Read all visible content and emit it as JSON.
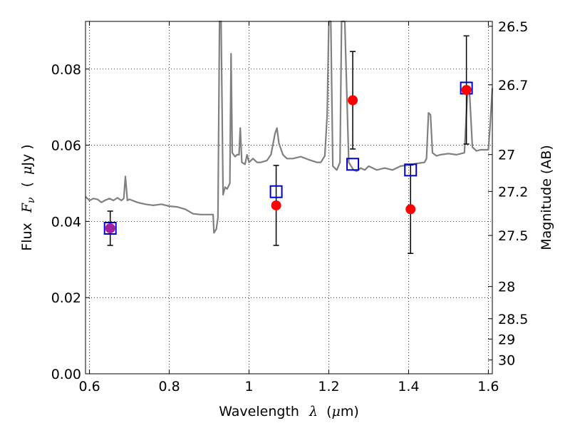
{
  "chart_data": {
    "type": "scatter",
    "xlabel": {
      "prefix": "Wavelength",
      "symbol": "λ",
      "units_open": "(",
      "units_symbol": "μ",
      "units_rest": "m)"
    },
    "ylabel": {
      "prefix": "Flux",
      "symbol": "F",
      "subscript": "ν",
      "units_open": "(",
      "units_symbol": "μ",
      "units_rest": "Jy )"
    },
    "ylabel_right": "Magnitude (AB)",
    "xlim": [
      0.59,
      1.61
    ],
    "ylim": [
      0.0,
      0.0925
    ],
    "grid": true,
    "x_ticks": [
      {
        "value": 0.6,
        "label": "0.6"
      },
      {
        "value": 0.8,
        "label": "0.8"
      },
      {
        "value": 1.0,
        "label": "1"
      },
      {
        "value": 1.2,
        "label": "1.2"
      },
      {
        "value": 1.4,
        "label": "1.4"
      },
      {
        "value": 1.6,
        "label": "1.6"
      }
    ],
    "y_ticks": [
      {
        "value": 0.0,
        "label": "0.00"
      },
      {
        "value": 0.02,
        "label": "0.02"
      },
      {
        "value": 0.04,
        "label": "0.04"
      },
      {
        "value": 0.06,
        "label": "0.06"
      },
      {
        "value": 0.08,
        "label": "0.08"
      }
    ],
    "right_ticks": [
      {
        "value": 26.5,
        "label": "26.5"
      },
      {
        "value": 26.7,
        "label": "26.7"
      },
      {
        "value": 27.0,
        "label": "27"
      },
      {
        "value": 27.2,
        "label": "27.2"
      },
      {
        "value": 27.5,
        "label": "27.5"
      },
      {
        "value": 28.0,
        "label": "28"
      },
      {
        "value": 28.5,
        "label": "28.5"
      },
      {
        "value": 29.0,
        "label": "29"
      },
      {
        "value": 30.0,
        "label": "30"
      }
    ],
    "template_spectrum": {
      "color": "#808080",
      "points": [
        [
          0.59,
          0.0465
        ],
        [
          0.6,
          0.0455
        ],
        [
          0.61,
          0.046
        ],
        [
          0.62,
          0.0458
        ],
        [
          0.63,
          0.045
        ],
        [
          0.64,
          0.0456
        ],
        [
          0.65,
          0.046
        ],
        [
          0.66,
          0.0455
        ],
        [
          0.67,
          0.0462
        ],
        [
          0.68,
          0.0455
        ],
        [
          0.686,
          0.046
        ],
        [
          0.69,
          0.0518
        ],
        [
          0.695,
          0.0455
        ],
        [
          0.7,
          0.0458
        ],
        [
          0.72,
          0.045
        ],
        [
          0.74,
          0.0445
        ],
        [
          0.76,
          0.0442
        ],
        [
          0.78,
          0.0445
        ],
        [
          0.8,
          0.044
        ],
        [
          0.82,
          0.0438
        ],
        [
          0.84,
          0.0432
        ],
        [
          0.86,
          0.042
        ],
        [
          0.88,
          0.0418
        ],
        [
          0.9,
          0.0418
        ],
        [
          0.91,
          0.0418
        ],
        [
          0.912,
          0.037
        ],
        [
          0.918,
          0.038
        ],
        [
          0.922,
          0.041
        ],
        [
          0.926,
          0.0925
        ],
        [
          0.93,
          0.0925
        ],
        [
          0.935,
          0.047
        ],
        [
          0.94,
          0.049
        ],
        [
          0.945,
          0.0485
        ],
        [
          0.952,
          0.05
        ],
        [
          0.955,
          0.084
        ],
        [
          0.958,
          0.058
        ],
        [
          0.965,
          0.057
        ],
        [
          0.97,
          0.0575
        ],
        [
          0.975,
          0.0575
        ],
        [
          0.978,
          0.0645
        ],
        [
          0.982,
          0.0555
        ],
        [
          0.99,
          0.055
        ],
        [
          0.995,
          0.0575
        ],
        [
          1.0,
          0.0555
        ],
        [
          1.01,
          0.0565
        ],
        [
          1.02,
          0.0555
        ],
        [
          1.03,
          0.0555
        ],
        [
          1.045,
          0.056
        ],
        [
          1.055,
          0.0575
        ],
        [
          1.065,
          0.063
        ],
        [
          1.07,
          0.0645
        ],
        [
          1.075,
          0.0605
        ],
        [
          1.085,
          0.0575
        ],
        [
          1.095,
          0.0565
        ],
        [
          1.11,
          0.0565
        ],
        [
          1.13,
          0.057
        ],
        [
          1.15,
          0.0562
        ],
        [
          1.17,
          0.0555
        ],
        [
          1.18,
          0.0555
        ],
        [
          1.19,
          0.0572
        ],
        [
          1.196,
          0.068
        ],
        [
          1.2,
          0.0925
        ],
        [
          1.205,
          0.0925
        ],
        [
          1.21,
          0.0545
        ],
        [
          1.22,
          0.0535
        ],
        [
          1.228,
          0.0555
        ],
        [
          1.232,
          0.0925
        ],
        [
          1.24,
          0.0925
        ],
        [
          1.25,
          0.0555
        ],
        [
          1.262,
          0.0535
        ],
        [
          1.27,
          0.0532
        ],
        [
          1.28,
          0.054
        ],
        [
          1.29,
          0.0535
        ],
        [
          1.3,
          0.0545
        ],
        [
          1.32,
          0.0535
        ],
        [
          1.34,
          0.054
        ],
        [
          1.36,
          0.0535
        ],
        [
          1.38,
          0.0545
        ],
        [
          1.4,
          0.0548
        ],
        [
          1.42,
          0.0552
        ],
        [
          1.44,
          0.0555
        ],
        [
          1.445,
          0.0565
        ],
        [
          1.45,
          0.0685
        ],
        [
          1.455,
          0.068
        ],
        [
          1.46,
          0.058
        ],
        [
          1.47,
          0.0572
        ],
        [
          1.48,
          0.0575
        ],
        [
          1.5,
          0.0578
        ],
        [
          1.52,
          0.0575
        ],
        [
          1.54,
          0.058
        ],
        [
          1.548,
          0.0745
        ],
        [
          1.553,
          0.0735
        ],
        [
          1.56,
          0.0595
        ],
        [
          1.57,
          0.0585
        ],
        [
          1.58,
          0.0588
        ],
        [
          1.6,
          0.0588
        ],
        [
          1.605,
          0.066
        ],
        [
          1.61,
          0.075
        ]
      ]
    },
    "series": [
      {
        "marker": "open-square",
        "color": "#0000cc",
        "points": [
          {
            "x": 0.652,
            "y": 0.0382
          },
          {
            "x": 1.068,
            "y": 0.0478
          },
          {
            "x": 1.26,
            "y": 0.055
          },
          {
            "x": 1.405,
            "y": 0.0535
          },
          {
            "x": 1.545,
            "y": 0.075
          }
        ]
      },
      {
        "marker": "filled-circle",
        "color": "#ff0000",
        "points": [
          {
            "x": 0.652,
            "y": 0.0382,
            "err": 0.0045
          },
          {
            "x": 1.068,
            "y": 0.0442,
            "err": 0.0105
          },
          {
            "x": 1.26,
            "y": 0.0718,
            "err": 0.0128
          },
          {
            "x": 1.405,
            "y": 0.0432,
            "err": 0.0116
          },
          {
            "x": 1.545,
            "y": 0.0745,
            "err": 0.0142
          }
        ]
      }
    ],
    "errorbar_color": "#000000",
    "overlap_color": "#a020a0"
  }
}
